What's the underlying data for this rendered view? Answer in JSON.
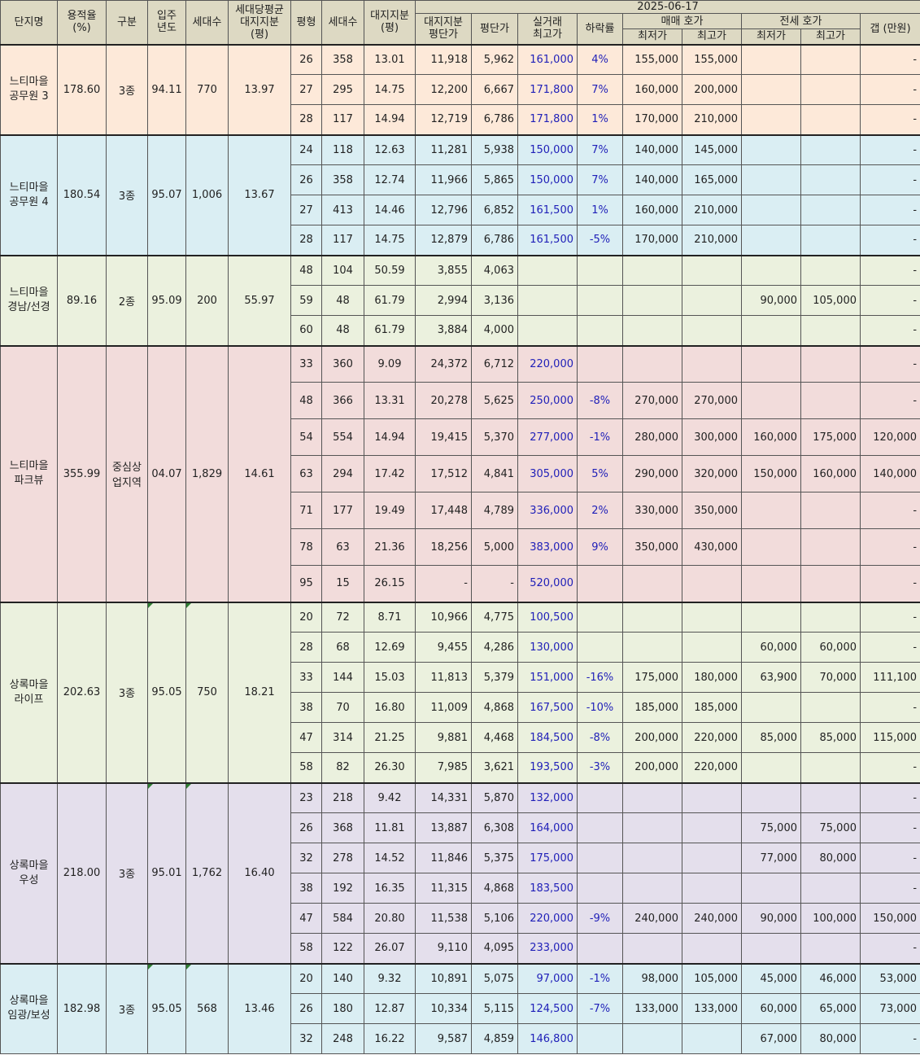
{
  "header": {
    "complex_name": "단지명",
    "far": "용적율\n(%)",
    "zone": "구분",
    "move_in": "입주\n년도",
    "households": "세대수",
    "avg_land_share": "세대당평균\n대지지분\n(평)",
    "pyeong": "평형",
    "unit_households": "세대수",
    "land_share": "대지지분\n(평)",
    "date": "2025-06-17",
    "land_price_per_pyeong": "대지지분\n평단가",
    "price_per_pyeong": "평단가",
    "real_trade_max": "실거래\n최고가",
    "drop_rate": "하락률",
    "sale_ask": "매매 호가",
    "jeonse_ask": "전세 호가",
    "min": "최저가",
    "max": "최고가",
    "gap": "갭 (만원)"
  },
  "groups": [
    {
      "name": "느티마을\n공무원 3",
      "far": "178.60",
      "zone": "3종",
      "year": "94.11",
      "households": "770",
      "avg_share": "13.97",
      "rows": [
        [
          "26",
          "358",
          "13.01",
          "11,918",
          "5,962",
          "161,000",
          "4%",
          "155,000",
          "155,000",
          "",
          "",
          "-"
        ],
        [
          "27",
          "295",
          "14.75",
          "12,200",
          "6,667",
          "171,800",
          "7%",
          "160,000",
          "200,000",
          "",
          "",
          "-"
        ],
        [
          "28",
          "117",
          "14.94",
          "12,719",
          "6,786",
          "171,800",
          "1%",
          "170,000",
          "210,000",
          "",
          "",
          "-"
        ]
      ]
    },
    {
      "name": "느티마을\n공무원 4",
      "far": "180.54",
      "zone": "3종",
      "year": "95.07",
      "households": "1,006",
      "avg_share": "13.67",
      "rows": [
        [
          "24",
          "118",
          "12.63",
          "11,281",
          "5,938",
          "150,000",
          "7%",
          "140,000",
          "145,000",
          "",
          "",
          "-"
        ],
        [
          "26",
          "358",
          "12.74",
          "11,966",
          "5,865",
          "150,000",
          "7%",
          "140,000",
          "165,000",
          "",
          "",
          "-"
        ],
        [
          "27",
          "413",
          "14.46",
          "12,796",
          "6,852",
          "161,500",
          "1%",
          "160,000",
          "210,000",
          "",
          "",
          "-"
        ],
        [
          "28",
          "117",
          "14.75",
          "12,879",
          "6,786",
          "161,500",
          "-5%",
          "170,000",
          "210,000",
          "",
          "",
          "-"
        ]
      ]
    },
    {
      "name": "느티마을\n경남/선경",
      "far": "89.16",
      "zone": "2종",
      "year": "95.09",
      "households": "200",
      "avg_share": "55.97",
      "rows": [
        [
          "48",
          "104",
          "50.59",
          "3,855",
          "4,063",
          "",
          "",
          "",
          "",
          "",
          "",
          "-"
        ],
        [
          "59",
          "48",
          "61.79",
          "2,994",
          "3,136",
          "",
          "",
          "",
          "",
          "90,000",
          "105,000",
          "-"
        ],
        [
          "60",
          "48",
          "61.79",
          "3,884",
          "4,000",
          "",
          "",
          "",
          "",
          "",
          "",
          "-"
        ]
      ]
    },
    {
      "name": "느티마을\n파크뷰",
      "far": "355.99",
      "zone": "중심상\n업지역",
      "year": "04.07",
      "households": "1,829",
      "avg_share": "14.61",
      "rows": [
        [
          "33",
          "360",
          "9.09",
          "24,372",
          "6,712",
          "220,000",
          "",
          "",
          "",
          "",
          "",
          "-"
        ],
        [
          "48",
          "366",
          "13.31",
          "20,278",
          "5,625",
          "250,000",
          "-8%",
          "270,000",
          "270,000",
          "",
          "",
          "-"
        ],
        [
          "54",
          "554",
          "14.94",
          "19,415",
          "5,370",
          "277,000",
          "-1%",
          "280,000",
          "300,000",
          "160,000",
          "175,000",
          "120,000"
        ],
        [
          "63",
          "294",
          "17.42",
          "17,512",
          "4,841",
          "305,000",
          "5%",
          "290,000",
          "320,000",
          "150,000",
          "160,000",
          "140,000"
        ],
        [
          "71",
          "177",
          "19.49",
          "17,448",
          "4,789",
          "336,000",
          "2%",
          "330,000",
          "350,000",
          "",
          "",
          "-"
        ],
        [
          "78",
          "63",
          "21.36",
          "18,256",
          "5,000",
          "383,000",
          "9%",
          "350,000",
          "430,000",
          "",
          "",
          "-"
        ],
        [
          "95",
          "15",
          "26.15",
          "-",
          "-",
          "520,000",
          "",
          "",
          "",
          "",
          "",
          "-"
        ]
      ]
    },
    {
      "name": "상록마을\n라이프",
      "far": "202.63",
      "zone": "3종",
      "year": "95.05",
      "households": "750",
      "avg_share": "18.21",
      "rows": [
        [
          "20",
          "72",
          "8.71",
          "10,966",
          "4,775",
          "100,500",
          "",
          "",
          "",
          "",
          "",
          "-"
        ],
        [
          "28",
          "68",
          "12.69",
          "9,455",
          "4,286",
          "130,000",
          "",
          "",
          "",
          "60,000",
          "60,000",
          "-"
        ],
        [
          "33",
          "144",
          "15.03",
          "11,813",
          "5,379",
          "151,000",
          "-16%",
          "175,000",
          "180,000",
          "63,900",
          "70,000",
          "111,100"
        ],
        [
          "38",
          "70",
          "16.80",
          "11,009",
          "4,868",
          "167,500",
          "-10%",
          "185,000",
          "185,000",
          "",
          "",
          "-"
        ],
        [
          "47",
          "314",
          "21.25",
          "9,881",
          "4,468",
          "184,500",
          "-8%",
          "200,000",
          "220,000",
          "85,000",
          "85,000",
          "115,000"
        ],
        [
          "58",
          "82",
          "26.30",
          "7,985",
          "3,621",
          "193,500",
          "-3%",
          "200,000",
          "220,000",
          "",
          "",
          "-"
        ]
      ]
    },
    {
      "name": "상록마을\n우성",
      "far": "218.00",
      "zone": "3종",
      "year": "95.01",
      "households": "1,762",
      "avg_share": "16.40",
      "rows": [
        [
          "23",
          "218",
          "9.42",
          "14,331",
          "5,870",
          "132,000",
          "",
          "",
          "",
          "",
          "",
          "-"
        ],
        [
          "26",
          "368",
          "11.81",
          "13,887",
          "6,308",
          "164,000",
          "",
          "",
          "",
          "75,000",
          "75,000",
          "-"
        ],
        [
          "32",
          "278",
          "14.52",
          "11,846",
          "5,375",
          "175,000",
          "",
          "",
          "",
          "77,000",
          "80,000",
          "-"
        ],
        [
          "38",
          "192",
          "16.35",
          "11,315",
          "4,868",
          "183,500",
          "",
          "",
          "",
          "",
          "",
          "-"
        ],
        [
          "47",
          "584",
          "20.80",
          "11,538",
          "5,106",
          "220,000",
          "-9%",
          "240,000",
          "240,000",
          "90,000",
          "100,000",
          "150,000"
        ],
        [
          "58",
          "122",
          "26.07",
          "9,110",
          "4,095",
          "233,000",
          "",
          "",
          "",
          "",
          "",
          "-"
        ]
      ]
    },
    {
      "name": "상록마을\n임광/보성",
      "far": "182.98",
      "zone": "3종",
      "year": "95.05",
      "households": "568",
      "avg_share": "13.46",
      "rows": [
        [
          "20",
          "140",
          "9.32",
          "10,891",
          "5,075",
          "97,000",
          "-1%",
          "98,000",
          "105,000",
          "45,000",
          "46,000",
          "53,000"
        ],
        [
          "26",
          "180",
          "12.87",
          "10,334",
          "5,115",
          "124,500",
          "-7%",
          "133,000",
          "133,000",
          "60,000",
          "65,000",
          "73,000"
        ],
        [
          "32",
          "248",
          "16.22",
          "9,587",
          "4,859",
          "146,800",
          "",
          "",
          "",
          "67,000",
          "80,000",
          "-"
        ]
      ]
    }
  ]
}
